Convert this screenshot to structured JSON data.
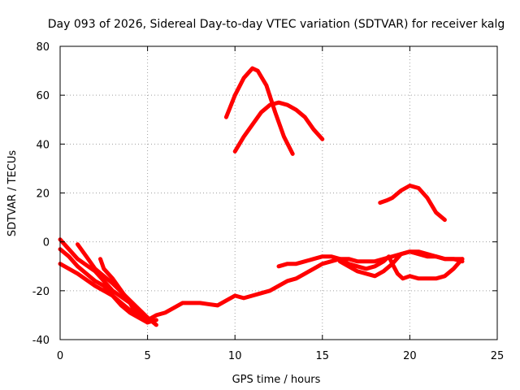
{
  "chart_data": {
    "type": "line",
    "title": "Day 093 of 2026, Sidereal Day-to-day VTEC variation (SDTVAR) for receiver kalg",
    "xlabel": "GPS time / hours",
    "ylabel": "SDTVAR / TECUs",
    "xlim": [
      0,
      25
    ],
    "ylim": [
      -40,
      80
    ],
    "xticks": [
      0,
      5,
      10,
      15,
      20,
      25
    ],
    "yticks": [
      -40,
      -20,
      0,
      20,
      40,
      60,
      80
    ],
    "xtick_labels": [
      "0",
      "5",
      "10",
      "15",
      "20",
      "25"
    ],
    "ytick_labels": [
      "-40",
      "-20",
      "0",
      "20",
      "40",
      "60",
      "80"
    ],
    "grid": true,
    "color": "#ff0000",
    "series": [
      {
        "name": "track-1",
        "x": [
          0.0,
          1.0,
          2.0,
          3.0,
          4.0,
          4.5,
          5.0,
          5.5
        ],
        "y": [
          1,
          -7,
          -12,
          -20,
          -25,
          -29,
          -33,
          -32
        ]
      },
      {
        "name": "track-2",
        "x": [
          0.0,
          0.5,
          1.0,
          1.5,
          2.0,
          2.5,
          3.0,
          3.5,
          4.0,
          4.5,
          5.0
        ],
        "y": [
          -3,
          -6,
          -10,
          -13,
          -16,
          -18,
          -22,
          -26,
          -29,
          -31,
          -33
        ]
      },
      {
        "name": "track-3",
        "x": [
          0.0,
          1.0,
          2.0,
          3.0,
          3.5,
          4.0,
          4.5,
          5.0,
          5.5,
          6.0,
          6.5,
          7.0,
          8.0,
          9.0,
          9.5,
          10.0,
          10.5,
          11.0,
          11.5,
          12.0,
          12.5,
          13.0,
          13.5,
          14.0,
          14.5,
          15.0,
          15.5,
          16.0
        ],
        "y": [
          -9,
          -13,
          -18,
          -22,
          -25,
          -28,
          -30,
          -32,
          -30,
          -29,
          -27,
          -25,
          -25,
          -26,
          -24,
          -22,
          -23,
          -22,
          -21,
          -20,
          -18,
          -16,
          -15,
          -13,
          -11,
          -9,
          -8,
          -7
        ]
      },
      {
        "name": "track-4",
        "x": [
          1.0,
          1.5,
          2.0,
          3.0,
          4.0,
          5.0,
          5.5
        ],
        "y": [
          -1,
          -6,
          -11,
          -17,
          -24,
          -31,
          -34
        ]
      },
      {
        "name": "track-5",
        "x": [
          2.3,
          2.5,
          3.0,
          3.5,
          4.0,
          4.3
        ],
        "y": [
          -7,
          -11,
          -15,
          -20,
          -25,
          -29
        ]
      },
      {
        "name": "track-6",
        "x": [
          9.5,
          10.0,
          10.5,
          11.0,
          11.3,
          11.8,
          12.3,
          12.8,
          13.3
        ],
        "y": [
          51,
          60,
          67,
          71,
          70,
          64,
          53,
          43,
          36
        ]
      },
      {
        "name": "track-7",
        "x": [
          10.0,
          10.5,
          11.0,
          11.5,
          12.0,
          12.5,
          13.0,
          13.5,
          14.0,
          14.5,
          15.0
        ],
        "y": [
          37,
          43,
          48,
          53,
          56,
          57,
          56,
          54,
          51,
          46,
          42
        ]
      },
      {
        "name": "track-8",
        "x": [
          12.5,
          13.0,
          13.5,
          14.0,
          14.5,
          15.0,
          15.5,
          16.0,
          16.5,
          17.0,
          17.5,
          18.0,
          18.5,
          19.0,
          19.5,
          20.0,
          20.5,
          21.0,
          21.5,
          22.0,
          22.5,
          23.0
        ],
        "y": [
          -10,
          -9,
          -9,
          -8,
          -7,
          -6,
          -6,
          -7,
          -7,
          -8,
          -8,
          -8,
          -7,
          -6,
          -5,
          -4,
          -4,
          -5,
          -6,
          -7,
          -7,
          -7
        ]
      },
      {
        "name": "track-9",
        "x": [
          16.0,
          16.5,
          17.0,
          17.5,
          18.0,
          18.5,
          19.0,
          19.5,
          20.0,
          20.5,
          21.0,
          21.5,
          22.0,
          22.5,
          23.0
        ],
        "y": [
          -8,
          -10,
          -12,
          -13,
          -14,
          -12,
          -9,
          -5,
          -4,
          -5,
          -6,
          -6,
          -7,
          -7,
          -8
        ]
      },
      {
        "name": "track-10",
        "x": [
          16.0,
          16.5,
          17.0,
          17.5,
          18.0,
          18.5,
          18.8,
          19.0,
          19.3,
          19.6,
          20.0,
          20.5,
          21.0,
          21.5,
          22.0,
          22.5,
          23.0
        ],
        "y": [
          -7,
          -9,
          -10,
          -11,
          -10,
          -8,
          -6,
          -9,
          -13,
          -15,
          -14,
          -15,
          -15,
          -15,
          -14,
          -11,
          -7
        ]
      },
      {
        "name": "track-11",
        "x": [
          18.3,
          18.7,
          19.0,
          19.5,
          20.0,
          20.5,
          21.0,
          21.5,
          22.0
        ],
        "y": [
          16,
          17,
          18,
          21,
          23,
          22,
          18,
          12,
          9
        ]
      }
    ]
  }
}
